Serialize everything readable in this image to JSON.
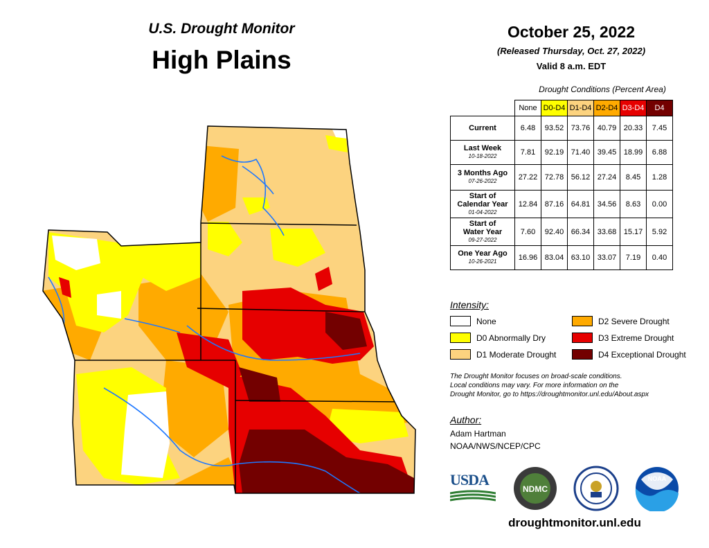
{
  "header": {
    "subtitle": "U.S. Drought Monitor",
    "title": "High Plains",
    "date": "October 25, 2022",
    "released": "(Released Thursday, Oct. 27, 2022)",
    "valid": "Valid 8 a.m. EDT"
  },
  "table": {
    "caption": "Drought Conditions (Percent Area)",
    "columns": [
      {
        "label": "None",
        "color": "#ffffff",
        "text": "#000000"
      },
      {
        "label": "D0-D4",
        "color": "#ffff00",
        "text": "#000000"
      },
      {
        "label": "D1-D4",
        "color": "#fcd37f",
        "text": "#000000"
      },
      {
        "label": "D2-D4",
        "color": "#ffaa00",
        "text": "#000000"
      },
      {
        "label": "D3-D4",
        "color": "#e60000",
        "text": "#ffffff"
      },
      {
        "label": "D4",
        "color": "#730000",
        "text": "#ffffff"
      }
    ],
    "rows": [
      {
        "label": "Current",
        "label2": "",
        "date": "",
        "values": [
          "6.48",
          "93.52",
          "73.76",
          "40.79",
          "20.33",
          "7.45"
        ]
      },
      {
        "label": "Last Week",
        "label2": "",
        "date": "10-18-2022",
        "values": [
          "7.81",
          "92.19",
          "71.40",
          "39.45",
          "18.99",
          "6.88"
        ]
      },
      {
        "label": "3 Months Ago",
        "label2": "",
        "date": "07-26-2022",
        "values": [
          "27.22",
          "72.78",
          "56.12",
          "27.24",
          "8.45",
          "1.28"
        ]
      },
      {
        "label": "Start of",
        "label2": "Calendar Year",
        "date": "01-04-2022",
        "values": [
          "12.84",
          "87.16",
          "64.81",
          "34.56",
          "8.63",
          "0.00"
        ]
      },
      {
        "label": "Start of",
        "label2": "Water Year",
        "date": "09-27-2022",
        "values": [
          "7.60",
          "92.40",
          "66.34",
          "33.68",
          "15.17",
          "5.92"
        ]
      },
      {
        "label": "One Year Ago",
        "label2": "",
        "date": "10-26-2021",
        "values": [
          "16.96",
          "83.04",
          "63.10",
          "33.07",
          "7.19",
          "0.40"
        ]
      }
    ]
  },
  "legend": {
    "title": "Intensity:",
    "items": [
      {
        "label": "None",
        "color": "#ffffff"
      },
      {
        "label": "D0 Abnormally Dry",
        "color": "#ffff00"
      },
      {
        "label": "D1 Moderate Drought",
        "color": "#fcd37f"
      },
      {
        "label": "D2 Severe Drought",
        "color": "#ffaa00"
      },
      {
        "label": "D3 Extreme Drought",
        "color": "#e60000"
      },
      {
        "label": "D4 Exceptional Drought",
        "color": "#730000"
      }
    ]
  },
  "note": {
    "line1": "The Drought Monitor focuses on broad-scale conditions.",
    "line2": "Local conditions may vary. For more information on the",
    "line3": "Drought Monitor, go to https://droughtmonitor.unl.edu/About.aspx"
  },
  "author": {
    "title": "Author:",
    "name": "Adam Hartman",
    "org": "NOAA/NWS/NCEP/CPC"
  },
  "logos": {
    "usda": "USDA",
    "ndmc": "NDMC",
    "noaa": "NOAA"
  },
  "footer": {
    "url": "droughtmonitor.unl.edu"
  }
}
